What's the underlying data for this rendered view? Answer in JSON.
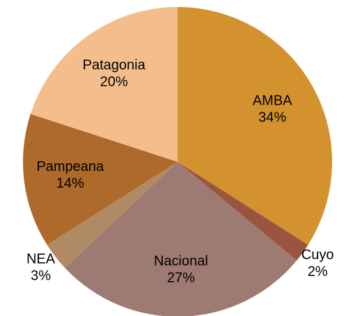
{
  "chart_data": {
    "type": "pie",
    "categories": [
      "AMBA",
      "Cuyo",
      "Nacional",
      "NEA",
      "Pampeana",
      "Patagonia"
    ],
    "values": [
      34,
      2,
      27,
      3,
      14,
      20
    ],
    "value_labels": [
      "34%",
      "2%",
      "27%",
      "3%",
      "14%",
      "20%"
    ],
    "colors": [
      "#d4922e",
      "#9a5540",
      "#9e7b72",
      "#b08a64",
      "#ad6a2a",
      "#f4be8c"
    ]
  }
}
